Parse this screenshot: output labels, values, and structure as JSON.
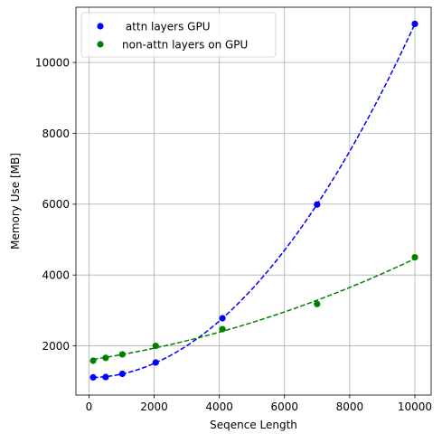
{
  "chart_data": {
    "type": "scatter",
    "title": "",
    "xlabel": "Seqence Length",
    "ylabel": "Memory Use [MB]",
    "xlim": [
      -400,
      10500
    ],
    "ylim": [
      610,
      11560
    ],
    "xticks": [
      0,
      2000,
      4000,
      6000,
      8000,
      10000
    ],
    "yticks": [
      2000,
      4000,
      6000,
      8000,
      10000
    ],
    "grid": true,
    "legend_position": "top-left",
    "series": [
      {
        "name": " attn layers GPU",
        "color": "#0000ff",
        "x": [
          128,
          512,
          1024,
          2048,
          4096,
          7000,
          10000
        ],
        "y": [
          1110,
          1120,
          1210,
          1530,
          2780,
          5990,
          11090
        ],
        "fit": "quadratic"
      },
      {
        "name": "non-attn layers on GPU",
        "color": "#008000",
        "x": [
          128,
          512,
          1024,
          2048,
          4096,
          7000,
          10000
        ],
        "y": [
          1580,
          1660,
          1760,
          2000,
          2470,
          3180,
          4500
        ],
        "fit": "quadratic"
      }
    ]
  }
}
